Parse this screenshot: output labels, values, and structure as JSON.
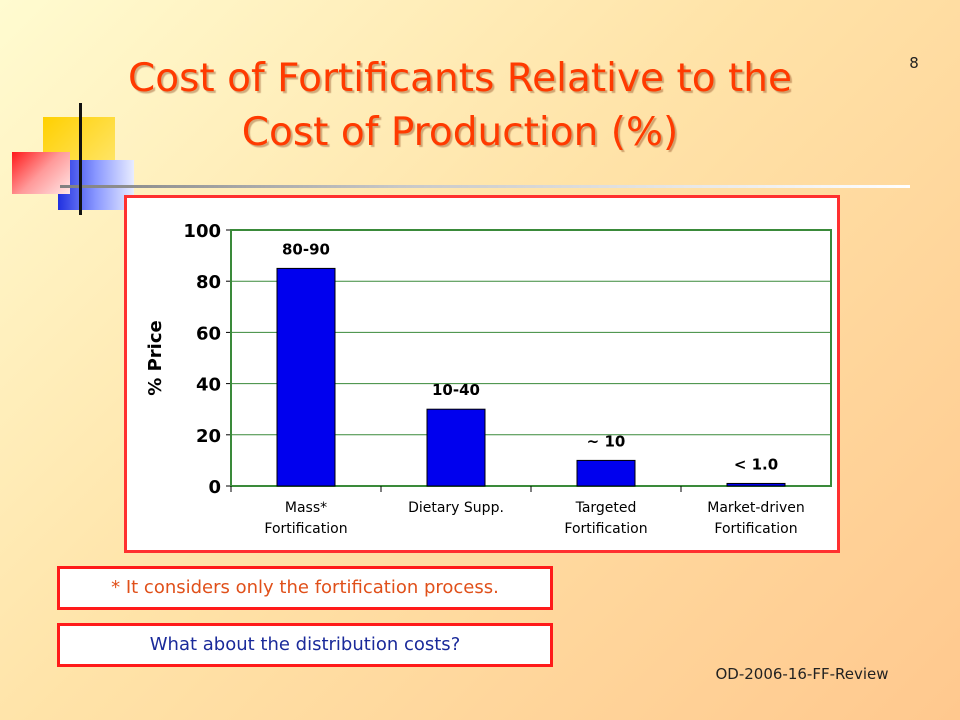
{
  "slide_number": "8",
  "title_lines": [
    "Cost of Fortificants Relative to the",
    "Cost of Production (%)"
  ],
  "footnote": "* It considers only the fortification process.",
  "question": "What about the distribution costs?",
  "footer": "OD-2006-16-FF-Review",
  "colors": {
    "title": "#ff3a00",
    "bar": "#0000ee",
    "plot_border": "#3a8a3a",
    "frame_border": "#ff3030"
  },
  "chart_data": {
    "type": "bar",
    "title": "",
    "xlabel": "",
    "ylabel": "% Price",
    "ylim": [
      0,
      100
    ],
    "yticks": [
      "0",
      "20",
      "40",
      "60",
      "80",
      "100"
    ],
    "grid": true,
    "categories": [
      [
        "Mass*",
        "Fortification"
      ],
      [
        "Dietary  Supp."
      ],
      [
        "Targeted",
        "Fortification"
      ],
      [
        "Market-driven",
        "Fortification"
      ]
    ],
    "values": [
      85,
      30,
      10,
      1
    ],
    "data_labels": [
      "80-90",
      "10-40",
      "~ 10",
      "< 1.0"
    ]
  }
}
